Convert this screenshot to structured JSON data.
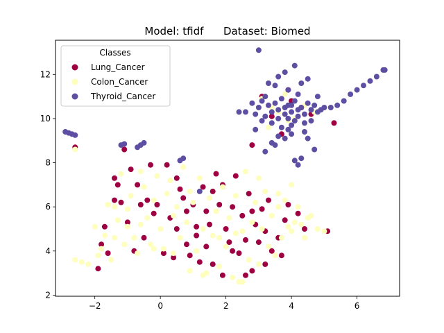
{
  "chart_data": {
    "type": "scatter",
    "title": "Model: tfidf      Dataset: Biomed",
    "xlabel": "",
    "ylabel": "",
    "xlim": [
      -3.2,
      7.3
    ],
    "ylim": [
      1.95,
      13.55
    ],
    "xticks": [
      -2,
      0,
      2,
      4,
      6
    ],
    "yticks": [
      2,
      4,
      6,
      8,
      10,
      12
    ],
    "grid": false,
    "legend": {
      "title": "Classes",
      "placement": "top-left"
    },
    "series": [
      {
        "name": "Lung_Cancer",
        "color": "#9e0142",
        "points": [
          [
            -2.6,
            8.7
          ],
          [
            -1.7,
            5.1
          ],
          [
            -1.6,
            3.9
          ],
          [
            -1.4,
            7.3
          ],
          [
            -1.3,
            7.0
          ],
          [
            -1.2,
            6.2
          ],
          [
            -1.1,
            8.6
          ],
          [
            -1.0,
            5.3
          ],
          [
            -0.9,
            7.7
          ],
          [
            -0.8,
            4.0
          ],
          [
            -0.7,
            7.0
          ],
          [
            -0.6,
            6.1
          ],
          [
            -0.4,
            6.3
          ],
          [
            -0.3,
            7.9
          ],
          [
            -0.2,
            5.7
          ],
          [
            -0.1,
            6.1
          ],
          [
            0.2,
            7.9
          ],
          [
            0.3,
            5.5
          ],
          [
            0.4,
            3.7
          ],
          [
            0.5,
            5.0
          ],
          [
            0.6,
            6.8
          ],
          [
            0.7,
            6.4
          ],
          [
            0.8,
            5.8
          ],
          [
            0.9,
            3.8
          ],
          [
            1.0,
            6.1
          ],
          [
            1.1,
            4.7
          ],
          [
            1.2,
            3.5
          ],
          [
            1.3,
            6.9
          ],
          [
            1.4,
            4.2
          ],
          [
            1.5,
            5.2
          ],
          [
            1.6,
            3.4
          ],
          [
            1.7,
            7.5
          ],
          [
            1.8,
            6.1
          ],
          [
            1.9,
            2.9
          ],
          [
            2.0,
            5.0
          ],
          [
            2.1,
            4.4
          ],
          [
            2.2,
            6.0
          ],
          [
            2.3,
            7.4
          ],
          [
            2.4,
            3.9
          ],
          [
            2.5,
            5.6
          ],
          [
            2.6,
            4.5
          ],
          [
            2.7,
            6.6
          ],
          [
            2.8,
            3.1
          ],
          [
            2.9,
            5.2
          ],
          [
            3.0,
            4.4
          ],
          [
            3.1,
            5.9
          ],
          [
            3.2,
            3.4
          ],
          [
            3.3,
            6.3
          ],
          [
            3.4,
            4.0
          ],
          [
            3.6,
            4.6
          ],
          [
            3.8,
            5.4
          ],
          [
            3.9,
            6.1
          ],
          [
            4.2,
            5.7
          ],
          [
            4.4,
            5.0
          ],
          [
            5.1,
            4.9
          ],
          [
            1.1,
            5.1
          ],
          [
            0.1,
            3.9
          ],
          [
            -0.5,
            4.6
          ],
          [
            -1.8,
            4.3
          ],
          [
            2.6,
            2.9
          ],
          [
            1.4,
            5.8
          ],
          [
            0.8,
            4.3
          ],
          [
            3.2,
            4.9
          ],
          [
            -1.9,
            3.2
          ],
          [
            2.2,
            4.0
          ],
          [
            1.9,
            7.0
          ],
          [
            0.5,
            7.3
          ],
          [
            -1.4,
            6.3
          ],
          [
            3.7,
            3.8
          ],
          [
            1.6,
            6.7
          ],
          [
            2.8,
            5.8
          ],
          [
            2.8,
            8.8
          ],
          [
            3.1,
            11.0
          ],
          [
            3.7,
            9.3
          ],
          [
            4.0,
            10.8
          ],
          [
            3.4,
            10.1
          ],
          [
            4.3,
            10.5
          ],
          [
            5.3,
            9.8
          ],
          [
            4.6,
            10.2
          ],
          [
            3.9,
            11.3
          ]
        ]
      },
      {
        "name": "Colon_Cancer",
        "color": "#fefebd",
        "points": [
          [
            -2.6,
            3.6
          ],
          [
            -2.4,
            3.5
          ],
          [
            -2.2,
            3.4
          ],
          [
            -2.0,
            5.1
          ],
          [
            -1.9,
            3.8
          ],
          [
            -1.8,
            4.1
          ],
          [
            -1.7,
            4.7
          ],
          [
            -1.6,
            6.1
          ],
          [
            -1.5,
            3.6
          ],
          [
            -1.4,
            4.6
          ],
          [
            -1.3,
            5.4
          ],
          [
            -1.2,
            7.5
          ],
          [
            -1.1,
            4.3
          ],
          [
            -1.0,
            5.1
          ],
          [
            -0.9,
            6.5
          ],
          [
            -0.8,
            4.6
          ],
          [
            -0.7,
            3.9
          ],
          [
            -0.6,
            5.2
          ],
          [
            -0.5,
            6.9
          ],
          [
            -0.4,
            5.5
          ],
          [
            -0.3,
            4.3
          ],
          [
            -0.2,
            6.3
          ],
          [
            -0.1,
            7.4
          ],
          [
            0.0,
            5.0
          ],
          [
            0.1,
            4.1
          ],
          [
            0.2,
            6.6
          ],
          [
            0.3,
            7.2
          ],
          [
            0.4,
            3.9
          ],
          [
            0.5,
            6.0
          ],
          [
            0.6,
            4.6
          ],
          [
            0.7,
            7.8
          ],
          [
            0.8,
            5.3
          ],
          [
            0.9,
            3.1
          ],
          [
            1.0,
            6.2
          ],
          [
            1.1,
            4.0
          ],
          [
            1.2,
            7.3
          ],
          [
            1.3,
            5.0
          ],
          [
            1.4,
            3.0
          ],
          [
            1.5,
            6.4
          ],
          [
            1.6,
            4.7
          ],
          [
            1.7,
            5.8
          ],
          [
            1.8,
            3.3
          ],
          [
            1.9,
            6.9
          ],
          [
            2.0,
            4.2
          ],
          [
            2.1,
            5.5
          ],
          [
            2.2,
            2.8
          ],
          [
            2.3,
            6.5
          ],
          [
            2.4,
            2.6
          ],
          [
            2.5,
            4.9
          ],
          [
            2.6,
            7.6
          ],
          [
            2.7,
            3.6
          ],
          [
            2.8,
            5.3
          ],
          [
            2.9,
            6.2
          ],
          [
            3.0,
            3.4
          ],
          [
            3.1,
            5.0
          ],
          [
            3.2,
            6.7
          ],
          [
            3.3,
            4.2
          ],
          [
            3.4,
            5.6
          ],
          [
            3.5,
            3.8
          ],
          [
            3.6,
            6.0
          ],
          [
            3.7,
            4.6
          ],
          [
            3.8,
            6.3
          ],
          [
            3.9,
            5.1
          ],
          [
            4.0,
            4.9
          ],
          [
            4.1,
            5.3
          ],
          [
            4.2,
            6.0
          ],
          [
            4.3,
            5.2
          ],
          [
            4.4,
            4.6
          ],
          [
            4.5,
            5.5
          ],
          [
            4.6,
            5.6
          ],
          [
            4.8,
            5.0
          ],
          [
            5.0,
            4.9
          ],
          [
            -1.4,
            6.0
          ],
          [
            0.4,
            5.6
          ],
          [
            1.3,
            2.9
          ],
          [
            2.5,
            2.6
          ],
          [
            3.0,
            7.3
          ],
          [
            -0.2,
            4.1
          ],
          [
            1.8,
            4.6
          ],
          [
            3.6,
            6.6
          ],
          [
            4.0,
            7.0
          ],
          [
            -1.0,
            5.9
          ],
          [
            0.9,
            6.7
          ],
          [
            2.3,
            4.8
          ],
          [
            -0.6,
            7.6
          ],
          [
            -2.6,
            8.6
          ],
          [
            3.4,
            10.5
          ],
          [
            3.9,
            9.9
          ],
          [
            4.4,
            10.6
          ],
          [
            3.1,
            10.9
          ],
          [
            3.6,
            10.3
          ],
          [
            4.1,
            10.0
          ],
          [
            3.3,
            9.6
          ],
          [
            4.7,
            10.3
          ],
          [
            3.8,
            11.1
          ]
        ]
      },
      {
        "name": "Thyroid_Cancer",
        "color": "#5e4fa2",
        "points": [
          [
            -2.9,
            9.4
          ],
          [
            -2.8,
            9.35
          ],
          [
            -2.7,
            9.3
          ],
          [
            -2.6,
            9.25
          ],
          [
            -1.2,
            8.8
          ],
          [
            -1.1,
            8.85
          ],
          [
            -0.7,
            8.7
          ],
          [
            -0.6,
            8.8
          ],
          [
            -0.5,
            8.9
          ],
          [
            0.6,
            8.1
          ],
          [
            0.7,
            8.2
          ],
          [
            3.0,
            13.1
          ],
          [
            3.2,
            8.5
          ],
          [
            3.4,
            8.9
          ],
          [
            3.6,
            9.2
          ],
          [
            3.8,
            9.1
          ],
          [
            4.0,
            9.3
          ],
          [
            4.1,
            8.1
          ],
          [
            4.2,
            7.9
          ],
          [
            4.3,
            8.2
          ],
          [
            4.5,
            9.1
          ],
          [
            4.7,
            8.6
          ],
          [
            2.6,
            10.3
          ],
          [
            2.8,
            10.7
          ],
          [
            2.9,
            10.2
          ],
          [
            3.0,
            10.5
          ],
          [
            3.1,
            10.8
          ],
          [
            3.2,
            10.1
          ],
          [
            3.3,
            10.6
          ],
          [
            3.4,
            10.3
          ],
          [
            3.5,
            10.7
          ],
          [
            3.6,
            10.4
          ],
          [
            3.7,
            10.9
          ],
          [
            3.8,
            10.2
          ],
          [
            3.9,
            10.6
          ],
          [
            4.0,
            10.3
          ],
          [
            4.1,
            10.8
          ],
          [
            4.2,
            10.1
          ],
          [
            4.3,
            10.5
          ],
          [
            4.4,
            10.2
          ],
          [
            4.5,
            10.7
          ],
          [
            4.6,
            10.4
          ],
          [
            4.7,
            10.6
          ],
          [
            4.8,
            10.3
          ],
          [
            5.0,
            10.5
          ],
          [
            5.2,
            10.5
          ],
          [
            5.4,
            10.6
          ],
          [
            5.6,
            10.8
          ],
          [
            5.8,
            11.1
          ],
          [
            6.0,
            11.3
          ],
          [
            6.2,
            11.5
          ],
          [
            6.4,
            11.7
          ],
          [
            6.6,
            11.9
          ],
          [
            6.8,
            12.2
          ],
          [
            6.85,
            12.2
          ],
          [
            3.5,
            11.5
          ],
          [
            3.6,
            11.9
          ],
          [
            3.8,
            12.1
          ],
          [
            4.1,
            12.4
          ],
          [
            4.3,
            11.6
          ],
          [
            4.5,
            11.8
          ],
          [
            3.3,
            11.6
          ],
          [
            3.9,
            11.3
          ],
          [
            4.2,
            11.1
          ],
          [
            3.4,
            9.8
          ],
          [
            3.7,
            9.6
          ],
          [
            4.4,
            9.8
          ],
          [
            4.0,
            9.7
          ],
          [
            3.6,
            10.0
          ],
          [
            4.1,
            9.9
          ],
          [
            3.9,
            10.0
          ],
          [
            4.2,
            10.4
          ],
          [
            3.8,
            10.5
          ],
          [
            4.0,
            10.6
          ],
          [
            2.9,
            9.5
          ],
          [
            3.2,
            11.0
          ],
          [
            4.6,
            9.9
          ],
          [
            4.9,
            10.4
          ],
          [
            2.4,
            10.3
          ],
          [
            4.8,
            11.0
          ],
          [
            1.2,
            6.7
          ],
          [
            3.5,
            8.8
          ],
          [
            3.9,
            9.5
          ],
          [
            4.4,
            9.4
          ],
          [
            3.1,
            9.9
          ]
        ]
      }
    ]
  }
}
